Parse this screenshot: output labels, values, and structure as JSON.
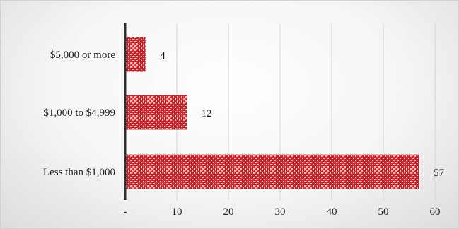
{
  "chart_data": {
    "type": "bar",
    "orientation": "horizontal",
    "categories": [
      "$5,000 or more",
      "$1,000 to $4,999",
      "Less than $1,000"
    ],
    "values": [
      4,
      12,
      57
    ],
    "data_labels": [
      "4",
      "12",
      "57"
    ],
    "x_ticks": [
      0,
      10,
      20,
      30,
      40,
      50,
      60
    ],
    "x_tick_labels": [
      "-",
      "10",
      "20",
      "30",
      "40",
      "50",
      "60"
    ],
    "xlim": [
      0,
      60
    ],
    "grid": true,
    "bar_color": "#c0282d",
    "bar_pattern_color": "#f2b8b8",
    "legend": "none"
  }
}
